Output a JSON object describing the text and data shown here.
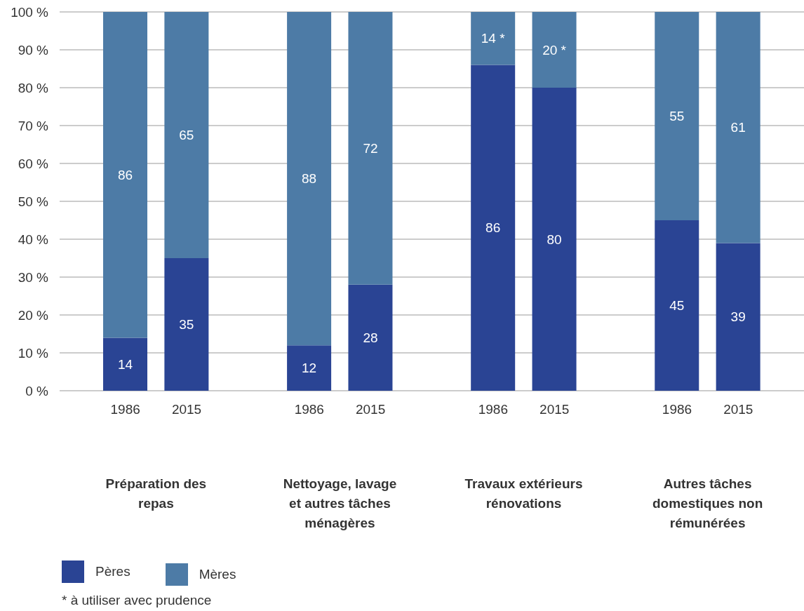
{
  "chart_data": {
    "type": "bar",
    "stacked": true,
    "categories": [
      "1986",
      "2015",
      "1986",
      "2015",
      "1986",
      "2015",
      "1986",
      "2015"
    ],
    "series": [
      {
        "name": "Pères",
        "color": "#2a4494",
        "values": [
          14,
          35,
          12,
          28,
          86,
          80,
          45,
          39
        ],
        "value_labels": [
          "14",
          "35",
          "12",
          "28",
          "86",
          "80",
          "45",
          "39"
        ]
      },
      {
        "name": "Mères",
        "color": "#4d7ba6",
        "values": [
          86,
          65,
          88,
          72,
          14,
          20,
          55,
          61
        ],
        "value_labels": [
          "86",
          "65",
          "88",
          "72",
          "14 *",
          "20 *",
          "55",
          "61"
        ]
      }
    ],
    "ylim": [
      0,
      100
    ],
    "yticks": [
      {
        "value": 0,
        "label": "0 %"
      },
      {
        "value": 10,
        "label": "10 %"
      },
      {
        "value": 20,
        "label": "20 %"
      },
      {
        "value": 30,
        "label": "30 %"
      },
      {
        "value": 40,
        "label": "40 %"
      },
      {
        "value": 50,
        "label": "50 %"
      },
      {
        "value": 60,
        "label": "60 %"
      },
      {
        "value": 70,
        "label": "70 %"
      },
      {
        "value": 80,
        "label": "80 %"
      },
      {
        "value": 90,
        "label": "90 %"
      },
      {
        "value": 100,
        "label": "100 %"
      }
    ],
    "grid": "y",
    "legend": "bottom left",
    "annotations": [
      "Préparation des repas",
      "Nettoyage, lavage et autres tâches ménagères",
      "Travaux extérieurs rénovations",
      "Autres tâches domestiques non rémunérées",
      "* à utiliser avec prudence"
    ]
  }
}
